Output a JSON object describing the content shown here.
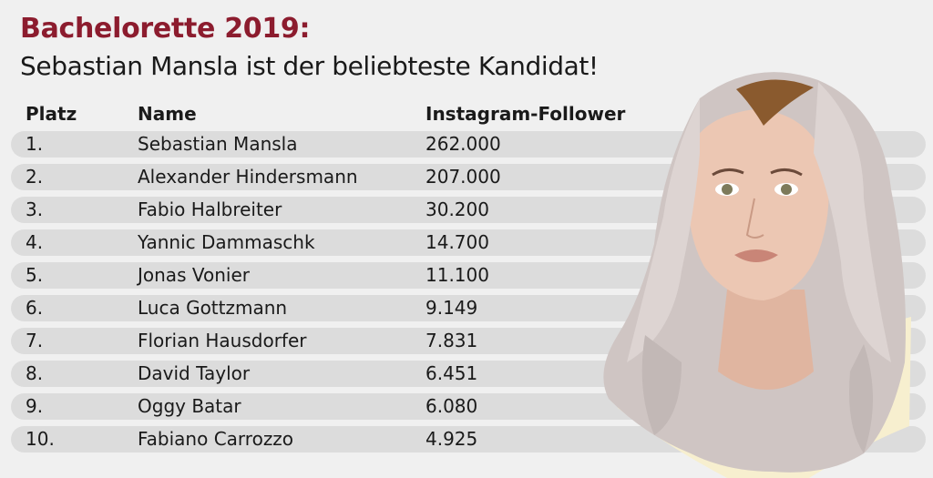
{
  "title": "Bachelorette 2019:",
  "subtitle": "Sebastian Mansla ist der beliebteste Kandidat!",
  "colors": {
    "title": "#8c1c2e",
    "row_bg": "#dcdcdc",
    "background": "#f0f0f0"
  },
  "table": {
    "headers": [
      "Platz",
      "Name",
      "Instagram-Follower"
    ],
    "rows": [
      {
        "rank": "1.",
        "name": "Sebastian Mansla",
        "followers": "262.000"
      },
      {
        "rank": "2.",
        "name": "Alexander Hindersmann",
        "followers": "207.000"
      },
      {
        "rank": "3.",
        "name": "Fabio Halbreiter",
        "followers": "30.200"
      },
      {
        "rank": "4.",
        "name": "Yannic Dammaschk",
        "followers": "14.700"
      },
      {
        "rank": "5.",
        "name": "Jonas Vonier",
        "followers": "11.100"
      },
      {
        "rank": "6.",
        "name": "Luca Gottzmann",
        "followers": "9.149"
      },
      {
        "rank": "7.",
        "name": "Florian Hausdorfer",
        "followers": "7.831"
      },
      {
        "rank": "8.",
        "name": "David Taylor",
        "followers": "6.451"
      },
      {
        "rank": "9.",
        "name": "Oggy Batar",
        "followers": "6.080"
      },
      {
        "rank": "10.",
        "name": "Fabiano Carrozzo",
        "followers": "4.925"
      }
    ]
  },
  "chart_data": {
    "type": "table",
    "title": "Bachelorette 2019:",
    "subtitle": "Sebastian Mansla ist der beliebteste Kandidat!",
    "columns": [
      "Platz",
      "Name",
      "Instagram-Follower"
    ],
    "categories": [
      "Sebastian Mansla",
      "Alexander Hindersmann",
      "Fabio Halbreiter",
      "Yannic Dammaschk",
      "Jonas Vonier",
      "Luca Gottzmann",
      "Florian Hausdorfer",
      "David Taylor",
      "Oggy Batar",
      "Fabiano Carrozzo"
    ],
    "values": [
      262000,
      207000,
      30200,
      14700,
      11100,
      9149,
      7831,
      6451,
      6080,
      4925
    ]
  },
  "illustration": {
    "icon": "portrait-illustration"
  }
}
